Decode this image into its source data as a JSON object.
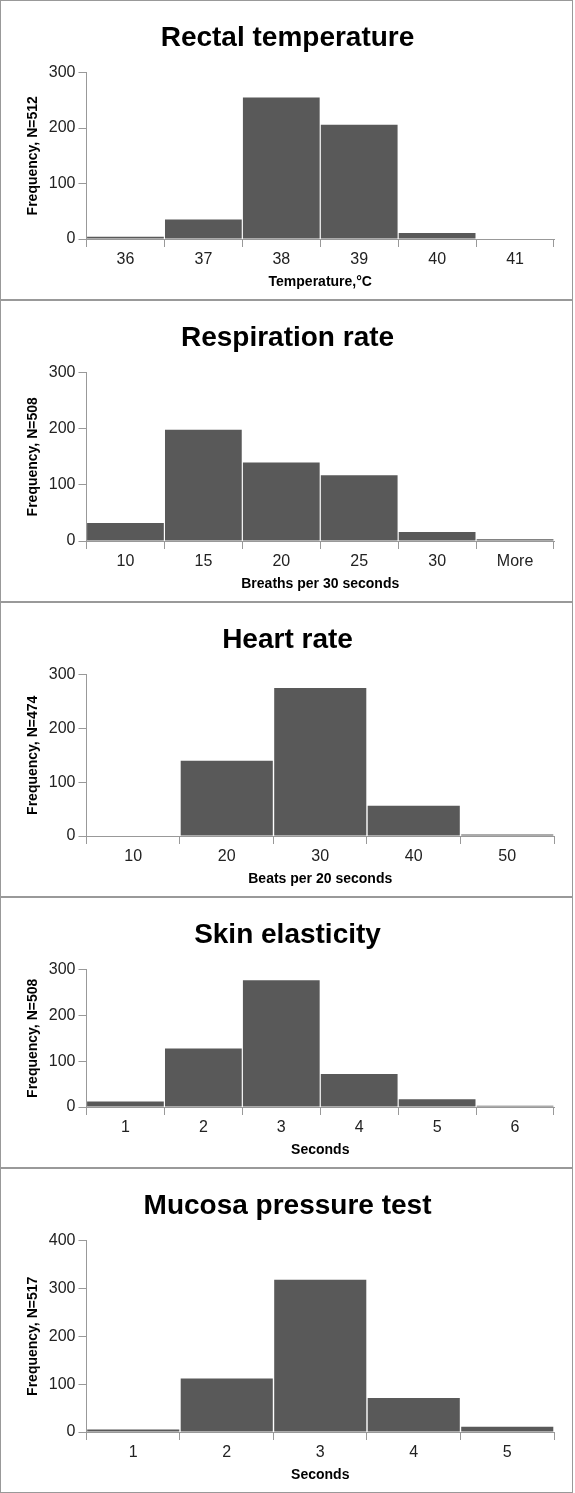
{
  "chart_data": [
    {
      "type": "bar",
      "title": "Rectal temperature",
      "xlabel": "Temperature,°C",
      "ylabel": "Frequency, N=512",
      "categories": [
        "36",
        "37",
        "38",
        "39",
        "40",
        "41"
      ],
      "values": [
        4,
        35,
        255,
        206,
        11,
        1
      ],
      "color": "#595959",
      "ylim": [
        0,
        300
      ],
      "yticks": [
        0,
        100,
        200,
        300
      ],
      "grid": false
    },
    {
      "type": "bar",
      "title": "Respiration rate",
      "xlabel": "Breaths per 30 seconds",
      "ylabel": "Frequency, N=508",
      "categories": [
        "10",
        "15",
        "20",
        "25",
        "30",
        "More"
      ],
      "values": [
        32,
        198,
        140,
        117,
        16,
        3
      ],
      "color": "#595959",
      "ylim": [
        0,
        300
      ],
      "yticks": [
        0,
        100,
        200,
        300
      ],
      "grid": false
    },
    {
      "type": "bar",
      "title": "Heart rate",
      "xlabel": "Beats per 20 seconds",
      "ylabel": "Frequency, N=474",
      "categories": [
        "10",
        "20",
        "30",
        "40",
        "50"
      ],
      "values": [
        0,
        140,
        275,
        56,
        3
      ],
      "color": "#595959",
      "ylim": [
        0,
        300
      ],
      "yticks": [
        0,
        100,
        200,
        300
      ],
      "grid": false
    },
    {
      "type": "bar",
      "title": "Skin elasticity",
      "xlabel": "Seconds",
      "ylabel": "Frequency, N=508",
      "categories": [
        "1",
        "2",
        "3",
        "4",
        "5",
        "6"
      ],
      "values": [
        12,
        128,
        277,
        72,
        17,
        3
      ],
      "color": "#595959",
      "ylim": [
        0,
        300
      ],
      "yticks": [
        0,
        100,
        200,
        300
      ],
      "grid": false
    },
    {
      "type": "bar",
      "title": "Mucosa pressure test",
      "xlabel": "Seconds",
      "ylabel": "Frequency, N=517",
      "categories": [
        "1",
        "2",
        "3",
        "4",
        "5"
      ],
      "values": [
        5,
        112,
        318,
        71,
        11
      ],
      "color": "#595959",
      "ylim": [
        0,
        400
      ],
      "yticks": [
        0,
        100,
        200,
        300,
        400
      ],
      "grid": false
    }
  ]
}
